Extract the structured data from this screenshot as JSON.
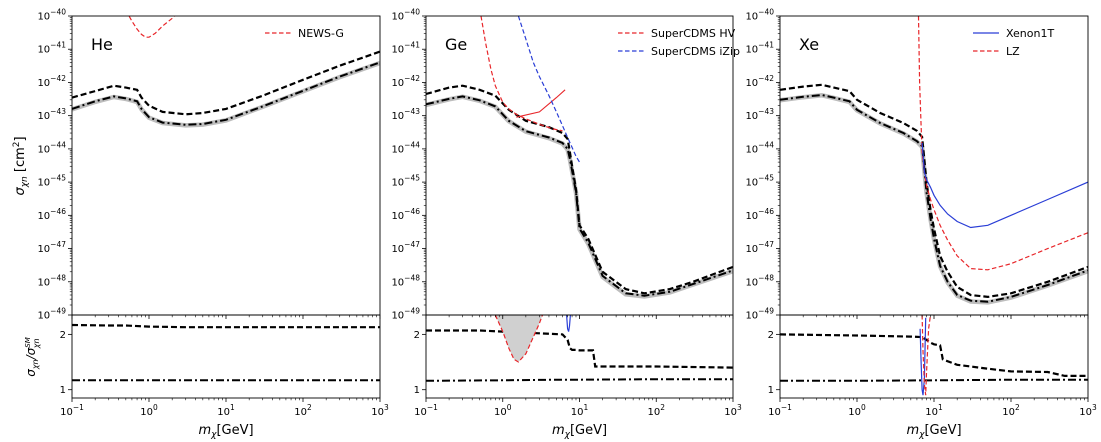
{
  "chart_data": [
    {
      "type": "line",
      "panel": "He",
      "label": "He",
      "xlim": [
        0.1,
        1000
      ],
      "ylim": [
        1e-49,
        1e-40
      ],
      "xscale": "log",
      "yscale": "log",
      "ylabel": "σχn [cm²]",
      "legend_placement": "top-right",
      "series": [
        {
          "name": "NEWS-G",
          "style": "red-dashed",
          "x": [
            0.5,
            0.6,
            0.7,
            0.8,
            0.9,
            1.0,
            1.2,
            1.5,
            2.0,
            2.5
          ],
          "y": [
            1.5e-40,
            7e-41,
            4e-41,
            2.8e-41,
            2.3e-41,
            2.3e-41,
            3e-41,
            5e-41,
            8.5e-41,
            1.4e-40
          ]
        },
        {
          "style": "black-dashed",
          "x": [
            0.1,
            0.2,
            0.35,
            0.5,
            0.7,
            0.8,
            1.0,
            1.5,
            3,
            5,
            10,
            30,
            100,
            300,
            1000
          ],
          "y": [
            3.5e-43,
            5.5e-43,
            8e-43,
            7e-43,
            6e-43,
            3.5e-43,
            2e-43,
            1.3e-43,
            1.1e-43,
            1.2e-43,
            1.6e-43,
            4e-43,
            1.2e-42,
            3.2e-42,
            8.5e-42
          ]
        },
        {
          "style": "black-dashdot",
          "x": [
            0.1,
            0.2,
            0.35,
            0.5,
            0.7,
            0.8,
            1.0,
            1.5,
            3,
            5,
            10,
            30,
            100,
            300,
            1000
          ],
          "y": [
            1.6e-43,
            2.7e-43,
            3.8e-43,
            3.3e-43,
            2.7e-43,
            1.6e-43,
            9e-44,
            6.2e-44,
            5.3e-44,
            5.6e-44,
            7.5e-44,
            1.9e-43,
            5.6e-43,
            1.5e-42,
            4e-42
          ]
        },
        {
          "style": "gray-band",
          "x": [
            0.1,
            0.2,
            0.35,
            0.5,
            0.7,
            0.8,
            1.0,
            1.5,
            3,
            5,
            10,
            30,
            100,
            300,
            1000
          ],
          "y": [
            1.55e-43,
            2.6e-43,
            3.65e-43,
            3.2e-43,
            2.6e-43,
            1.55e-43,
            8.7e-44,
            6e-44,
            5.1e-44,
            5.4e-44,
            7.2e-44,
            1.85e-43,
            5.4e-43,
            1.45e-42,
            3.85e-42
          ]
        }
      ],
      "ratio": {
        "ylabel": "σχn/σχn^SM",
        "ylim": [
          0.85,
          2.35
        ],
        "yticks": [
          1,
          2
        ],
        "series": [
          {
            "style": "black-dashed",
            "x": [
              0.1,
              0.3,
              0.5,
              1,
              3,
              10,
              100,
              1000
            ],
            "y": [
              2.17,
              2.16,
              2.16,
              2.14,
              2.13,
              2.13,
              2.13,
              2.13
            ]
          },
          {
            "style": "black-dashdot",
            "x": [
              0.1,
              1000
            ],
            "y": [
              1.17,
              1.17
            ]
          }
        ]
      },
      "xlabel": "mχ[GeV]"
    },
    {
      "type": "line",
      "panel": "Ge",
      "label": "Ge",
      "xlim": [
        0.1,
        1000
      ],
      "ylim": [
        1e-49,
        1e-40
      ],
      "xscale": "log",
      "yscale": "log",
      "legend_placement": "top-right",
      "series": [
        {
          "name": "SuperCDMS HV",
          "style": "red-dashed",
          "x": [
            0.52,
            0.6,
            0.7,
            0.8,
            1.0,
            1.2,
            1.5,
            2.0,
            3.0,
            4.5,
            6.0
          ],
          "y": [
            1e-40,
            1.5e-41,
            2.5e-42,
            8e-43,
            2.5e-43,
            1.6e-43,
            1.1e-43,
            8e-44,
            5.5e-44,
            4e-44,
            3.5e-44
          ]
        },
        {
          "name": "SuperCDMS iZip",
          "style": "blue-dashed",
          "x": [
            1.6,
            2.0,
            2.5,
            3.0,
            4.0,
            5.0,
            6.0,
            7.0,
            8.0,
            9.0,
            10.0
          ],
          "y": [
            1e-40,
            2e-41,
            4e-42,
            1.5e-42,
            4e-43,
            1.3e-43,
            5e-44,
            2.2e-44,
            1.1e-44,
            6e-45,
            4e-45
          ]
        },
        {
          "style": "red-solid",
          "x": [
            1.5,
            3,
            5,
            6.5
          ],
          "y": [
            9e-44,
            1.3e-43,
            3.5e-43,
            6e-43
          ]
        },
        {
          "style": "black-dashed",
          "x": [
            0.1,
            0.2,
            0.3,
            0.5,
            0.8,
            1.2,
            2,
            4,
            6,
            7,
            7.5,
            8,
            9,
            10,
            13,
            20,
            40,
            70,
            150,
            300,
            1000
          ],
          "y": [
            4.5e-43,
            7e-43,
            8e-43,
            6e-43,
            4e-43,
            1.5e-43,
            7e-44,
            4.5e-44,
            3e-44,
            2e-44,
            8e-45,
            3e-45,
            6e-46,
            5e-47,
            2e-47,
            2e-48,
            6e-49,
            4.5e-49,
            6e-49,
            1e-48,
            2.8e-48
          ]
        },
        {
          "style": "black-dashdot",
          "x": [
            0.1,
            0.2,
            0.3,
            0.5,
            0.8,
            1.2,
            2,
            4,
            6,
            7,
            7.5,
            8,
            9,
            10,
            13,
            20,
            40,
            70,
            150,
            300,
            1000
          ],
          "y": [
            2.2e-43,
            3.2e-43,
            3.8e-43,
            2.9e-43,
            1.9e-43,
            7e-44,
            3.4e-44,
            2.2e-44,
            1.5e-44,
            1e-44,
            5e-45,
            2.2e-45,
            5e-46,
            4e-47,
            1.5e-47,
            1.5e-48,
            4.5e-49,
            3.8e-49,
            5e-49,
            8.5e-49,
            2.2e-48
          ]
        },
        {
          "style": "gray-band",
          "x": [
            0.1,
            0.2,
            0.3,
            0.5,
            0.8,
            1.2,
            2,
            4,
            6,
            7,
            7.5,
            8,
            9,
            10,
            13,
            20,
            40,
            70,
            150,
            300,
            1000
          ],
          "y": [
            2.1e-43,
            3.1e-43,
            3.7e-43,
            2.8e-43,
            1.85e-43,
            6.8e-44,
            3.3e-44,
            2.1e-44,
            1.45e-44,
            9.5e-45,
            4.8e-45,
            2.1e-45,
            4.8e-46,
            3.8e-47,
            1.4e-47,
            1.4e-48,
            4.2e-49,
            3.6e-49,
            4.8e-49,
            8.2e-49,
            2.1e-48
          ]
        }
      ],
      "ratio": {
        "ylim": [
          0.85,
          2.35
        ],
        "yticks": [
          1,
          2
        ],
        "series": [
          {
            "style": "black-dashed",
            "x": [
              0.1,
              0.5,
              1,
              3,
              6,
              7,
              7.5,
              8,
              9,
              10,
              15,
              16,
              100,
              1000
            ],
            "y": [
              2.07,
              2.07,
              2.05,
              2.02,
              2.0,
              1.9,
              1.75,
              1.72,
              1.72,
              1.71,
              1.71,
              1.42,
              1.42,
              1.4
            ]
          },
          {
            "style": "black-dashdot",
            "x": [
              0.1,
              1,
              5,
              10,
              100,
              1000
            ],
            "y": [
              1.16,
              1.17,
              1.18,
              1.18,
              1.19,
              1.19
            ]
          },
          {
            "style": "red-dashed-shaded",
            "x": [
              0.8,
              1.0,
              1.2,
              1.4,
              1.6,
              2.0,
              2.5,
              3.0,
              3.3
            ],
            "y": [
              2.35,
              2.05,
              1.75,
              1.55,
              1.5,
              1.65,
              1.95,
              2.2,
              2.35
            ]
          },
          {
            "style": "blue-solid",
            "x": [
              6.8,
              7.0,
              7.2,
              7.4,
              7.6
            ],
            "y": [
              2.35,
              2.1,
              2.05,
              2.15,
              2.35
            ]
          }
        ]
      },
      "xlabel": "mχ[GeV]"
    },
    {
      "type": "line",
      "panel": "Xe",
      "label": "Xe",
      "xlim": [
        0.1,
        1000
      ],
      "ylim": [
        1e-49,
        1e-40
      ],
      "xscale": "log",
      "yscale": "log",
      "legend_placement": "top-right",
      "series": [
        {
          "name": "Xenon1T",
          "style": "blue-solid",
          "x": [
            7,
            7.5,
            8,
            9,
            10,
            12,
            15,
            20,
            30,
            50,
            100,
            300,
            1000
          ],
          "y": [
            1.5e-44,
            2e-45,
            1.2e-45,
            7e-46,
            4e-46,
            2e-46,
            1.1e-46,
            6.5e-47,
            4.3e-47,
            5e-47,
            1e-46,
            3e-46,
            1e-45
          ]
        },
        {
          "name": "LZ",
          "style": "red-dashed",
          "x": [
            6.3,
            6.5,
            6.8,
            7,
            7.5,
            8,
            9,
            10,
            12,
            15,
            20,
            30,
            50,
            100,
            300,
            1000
          ],
          "y": [
            1e-40,
            1e-42,
            5e-44,
            8e-45,
            2e-45,
            8e-46,
            3e-46,
            1.5e-46,
            5e-47,
            1.8e-47,
            6e-48,
            2.5e-48,
            2.3e-48,
            3.5e-48,
            1e-47,
            3e-47
          ]
        },
        {
          "style": "black-dashed",
          "x": [
            0.1,
            0.2,
            0.35,
            0.5,
            0.8,
            1,
            2,
            4,
            6,
            7,
            8,
            9,
            10,
            12,
            15,
            20,
            30,
            50,
            100,
            300,
            1000
          ],
          "y": [
            6e-43,
            7.5e-43,
            8.5e-43,
            7e-43,
            5.5e-43,
            3e-43,
            1.2e-43,
            6e-44,
            3.5e-44,
            2.3e-44,
            1e-45,
            1.5e-46,
            4e-47,
            6e-48,
            2e-48,
            7e-49,
            4e-49,
            3.5e-49,
            4.5e-49,
            1e-48,
            2.8e-48
          ]
        },
        {
          "style": "black-dashdot",
          "x": [
            0.1,
            0.2,
            0.35,
            0.5,
            0.8,
            1,
            2,
            4,
            6,
            7,
            8,
            9,
            10,
            12,
            15,
            20,
            30,
            50,
            100,
            300,
            1000
          ],
          "y": [
            3e-43,
            3.7e-43,
            4.2e-43,
            3.5e-43,
            2.7e-43,
            1.5e-43,
            6e-44,
            3e-44,
            1.7e-44,
            1.2e-44,
            5e-46,
            8e-47,
            2e-47,
            3e-48,
            1e-48,
            4e-49,
            2.7e-49,
            2.5e-49,
            3.5e-49,
            8e-49,
            2.2e-48
          ]
        },
        {
          "style": "gray-band",
          "x": [
            0.1,
            0.2,
            0.35,
            0.5,
            0.8,
            1,
            2,
            4,
            6,
            7,
            8,
            9,
            10,
            12,
            15,
            20,
            30,
            50,
            100,
            300,
            1000
          ],
          "y": [
            2.9e-43,
            3.6e-43,
            4.1e-43,
            3.4e-43,
            2.6e-43,
            1.45e-43,
            5.8e-44,
            2.9e-44,
            1.65e-44,
            1.15e-44,
            4.8e-46,
            7.7e-47,
            1.9e-47,
            2.9e-48,
            9.5e-49,
            3.8e-49,
            2.55e-49,
            2.4e-49,
            3.35e-49,
            7.7e-49,
            2.1e-48
          ]
        }
      ],
      "ratio": {
        "ylim": [
          0.85,
          2.35
        ],
        "yticks": [
          1,
          2
        ],
        "series": [
          {
            "style": "black-dashed",
            "x": [
              0.1,
              1,
              5,
              7,
              8,
              9,
              10,
              12,
              13,
              14,
              20,
              50,
              100,
              300,
              500,
              1000
            ],
            "y": [
              2.0,
              1.98,
              1.96,
              1.95,
              1.9,
              1.85,
              1.82,
              1.8,
              1.55,
              1.53,
              1.45,
              1.38,
              1.33,
              1.32,
              1.25,
              1.25
            ]
          },
          {
            "style": "black-dashdot",
            "x": [
              0.1,
              1,
              10,
              100,
              1000
            ],
            "y": [
              1.16,
              1.16,
              1.17,
              1.18,
              1.18
            ]
          },
          {
            "style": "blue-solid",
            "x": [
              6.6,
              6.8,
              7.0,
              7.2,
              7.5,
              7.8
            ],
            "y": [
              2.1,
              1.5,
              1.0,
              0.9,
              1.2,
              2.3
            ]
          },
          {
            "style": "red-dashed",
            "x": [
              7.0,
              7.2,
              7.5,
              7.8,
              8.0,
              8.5,
              9.0
            ],
            "y": [
              2.35,
              1.7,
              1.1,
              0.9,
              1.3,
              2.1,
              2.35
            ]
          }
        ]
      },
      "xlabel": "mχ[GeV]"
    }
  ],
  "ticks": {
    "x_labels": [
      "10⁻¹",
      "10⁰",
      "10¹",
      "10²",
      "10³"
    ],
    "y_exponents": [
      "-40",
      "-41",
      "-42",
      "-43",
      "-44",
      "-45",
      "-46",
      "-47",
      "-48",
      "-49"
    ],
    "y_base": "10"
  }
}
